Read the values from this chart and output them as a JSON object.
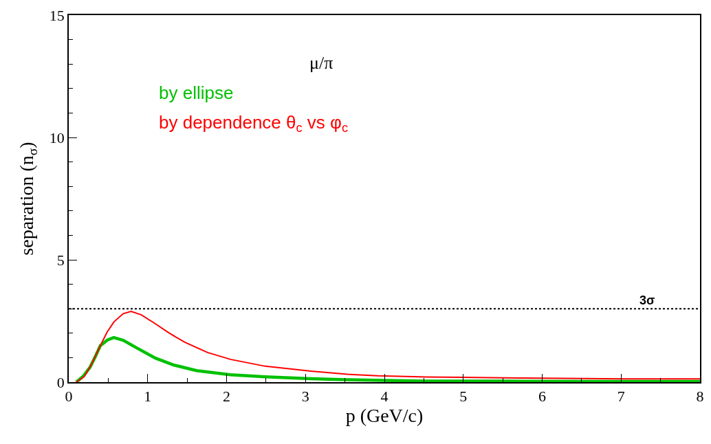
{
  "chart_data": {
    "type": "line",
    "title": "μ/π",
    "xlabel": "p (GeV/c)",
    "ylabel": "separation (n$_{σ}$)",
    "xlim": [
      0,
      8
    ],
    "xticks": [
      0,
      1,
      2,
      3,
      4,
      5,
      6,
      7,
      8
    ],
    "ylim": [
      0,
      15
    ],
    "yticks": [
      0,
      5,
      10,
      15
    ],
    "legend": false,
    "line_style": "solid",
    "ref_lines": [
      {
        "axis": "y",
        "value": 3,
        "label": "3σ",
        "color": "#000000",
        "line_style": "dotted"
      }
    ],
    "series": [
      {
        "name": "by ellipse",
        "color": "#00c000",
        "x": [
          0.095,
          0.18,
          0.27,
          0.34,
          0.4,
          0.49,
          0.57,
          0.69,
          0.86,
          1.1,
          1.33,
          1.62,
          2.05,
          2.49,
          3.07,
          3.53,
          4.0,
          4.53,
          5.5,
          6.5,
          7.5,
          8.0
        ],
        "values": [
          0,
          0.23,
          0.61,
          1.07,
          1.49,
          1.72,
          1.82,
          1.71,
          1.4,
          0.98,
          0.7,
          0.47,
          0.3,
          0.22,
          0.14,
          0.1,
          0.07,
          0.04,
          0.04,
          0.03,
          0.03,
          0.03
        ]
      },
      {
        "name": "by dependence θ$_{c}$ vs φ$_{c}$",
        "color": "#ff0000",
        "x": [
          0.095,
          0.197,
          0.284,
          0.4,
          0.487,
          0.574,
          0.69,
          0.79,
          0.92,
          1.1,
          1.27,
          1.47,
          1.76,
          2.05,
          2.49,
          3.07,
          3.53,
          3.92,
          4.53,
          5.0,
          5.71,
          7.05,
          8.0
        ],
        "values": [
          0,
          0.23,
          0.7,
          1.49,
          2.05,
          2.47,
          2.8,
          2.89,
          2.75,
          2.38,
          2.01,
          1.63,
          1.21,
          0.93,
          0.65,
          0.45,
          0.32,
          0.26,
          0.21,
          0.2,
          0.17,
          0.13,
          0.13
        ]
      }
    ]
  }
}
